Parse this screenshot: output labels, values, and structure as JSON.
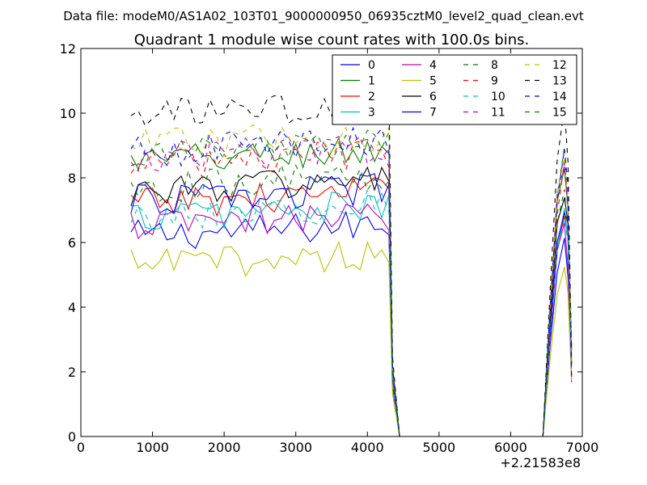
{
  "chart_data": {
    "type": "line",
    "suptitle": "Data file: modeM0/AS1A02_103T01_9000000950_06935cztM0_level2_quad_clean.evt",
    "title": "Quadrant 1 module wise count rates with 100.0s bins.",
    "xlabel": "",
    "ylabel": "",
    "x_offset_label": "+2.21583e8",
    "xlim": [
      0,
      7000
    ],
    "ylim": [
      0,
      12
    ],
    "xticks": [
      "0",
      "1000",
      "2000",
      "3000",
      "4000",
      "5000",
      "6000",
      "7000"
    ],
    "yticks": [
      "0",
      "2",
      "4",
      "6",
      "8",
      "10",
      "12"
    ],
    "grid": false,
    "legend_position": "top-right",
    "legend_columns": 4,
    "active_segments": [
      [
        700,
        4250
      ],
      [
        6750,
        6800
      ]
    ],
    "off_window": [
      4450,
      6450
    ],
    "series": [
      {
        "name": "0",
        "color": "#0000ff",
        "dash": "solid",
        "level": 6.2
      },
      {
        "name": "1",
        "color": "#008000",
        "dash": "solid",
        "level": 8.5
      },
      {
        "name": "2",
        "color": "#ff0000",
        "dash": "solid",
        "level": 7.2
      },
      {
        "name": "3",
        "color": "#00bfbf",
        "dash": "solid",
        "level": 6.8
      },
      {
        "name": "4",
        "color": "#bf00bf",
        "dash": "solid",
        "level": 6.5
      },
      {
        "name": "5",
        "color": "#bfbf00",
        "dash": "solid",
        "level": 5.3
      },
      {
        "name": "6",
        "color": "#000000",
        "dash": "solid",
        "level": 7.6
      },
      {
        "name": "7",
        "color": "#0000ff",
        "dash": "solid",
        "level": 7.3
      },
      {
        "name": "8",
        "color": "#008000",
        "dash": "dashed",
        "level": 8.7
      },
      {
        "name": "9",
        "color": "#ff0000",
        "dash": "dashed",
        "level": 8.4
      },
      {
        "name": "10",
        "color": "#00bfbf",
        "dash": "dashed",
        "level": 6.8
      },
      {
        "name": "11",
        "color": "#bf00bf",
        "dash": "dashed",
        "level": 8.6
      },
      {
        "name": "12",
        "color": "#bfbf00",
        "dash": "dashed",
        "level": 9.0
      },
      {
        "name": "13",
        "color": "#000000",
        "dash": "dashed",
        "level": 9.9
      },
      {
        "name": "14",
        "color": "#0000ff",
        "dash": "dashed",
        "level": 8.8
      },
      {
        "name": "15",
        "color": "#008000",
        "dash": "dashed",
        "level": 7.7
      }
    ]
  }
}
